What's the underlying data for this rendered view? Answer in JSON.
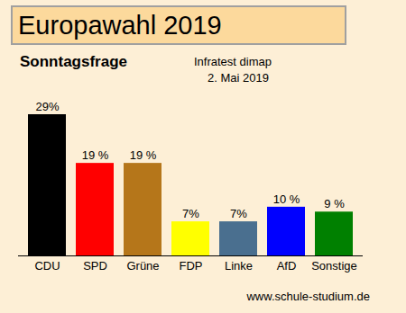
{
  "chart_data": {
    "type": "bar",
    "title": "Europawahl 2019",
    "subtitle": "Sonntagsfrage",
    "annotations": [
      "Infratest dimap",
      "2. Mai 2019"
    ],
    "caption": "www.schule-studium.de",
    "categories": [
      "CDU",
      "SPD",
      "Grüne",
      "FDP",
      "Linke",
      "AfD",
      "Sonstige"
    ],
    "values": [
      29,
      19,
      19,
      7,
      7,
      10,
      9
    ],
    "value_labels": [
      "29%",
      "19 %",
      "19 %",
      "7%",
      "7%",
      "10 %",
      "9 %"
    ],
    "colors": [
      "#000000",
      "#ff0000",
      "#b5761a",
      "#ffff00",
      "#4a6f8f",
      "#0000ff",
      "#008000"
    ],
    "data_labels": true,
    "tick_labels": "x"
  }
}
